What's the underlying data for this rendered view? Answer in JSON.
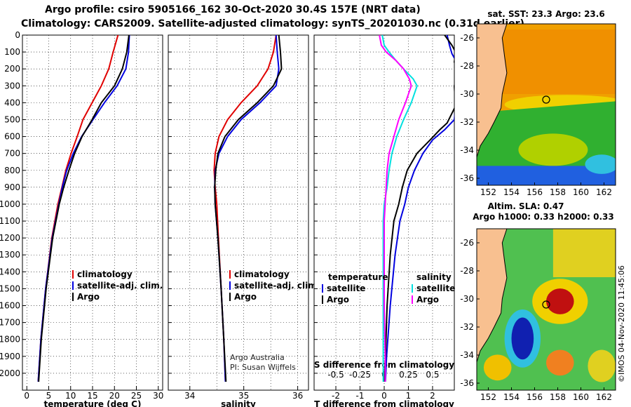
{
  "title": {
    "line1": "Argo profile: csiro 5905166_162 30-Oct-2020 30.4S 157E (NRT data)",
    "line2": "Climatology: CARS2009. Satellite-adjusted climatology: synTS_20201030.nc (0.31d earlier)"
  },
  "depth_ticks": [
    "0",
    "100",
    "200",
    "300",
    "400",
    "500",
    "600",
    "700",
    "800",
    "900",
    "1000",
    "1100",
    "1200",
    "1300",
    "1400",
    "1500",
    "1600",
    "1700",
    "1800",
    "1900",
    "2000"
  ],
  "colors": {
    "climatology": "#e00000",
    "satellite": "#0000e0",
    "argo": "#000000",
    "argo_salinity": "#ff00ff",
    "satellite_salinity": "#00e0e0"
  },
  "chart_data": [
    {
      "type": "line",
      "name": "temperature",
      "xlabel": "temperature (deg C)",
      "ylabel": "depth",
      "xlim": [
        -1,
        31
      ],
      "ylim": [
        2100,
        0
      ],
      "xticks": [
        "0",
        "5",
        "10",
        "15",
        "20",
        "25",
        "30"
      ],
      "xtick_values": [
        0,
        5,
        10,
        15,
        20,
        25,
        30
      ],
      "legend": {
        "position": "lower-right",
        "entries": [
          "climatology",
          "satellite-adj. clim.",
          "Argo"
        ]
      },
      "series": [
        {
          "name": "climatology",
          "color": "#e00000",
          "depth": [
            0,
            100,
            200,
            300,
            400,
            500,
            600,
            700,
            800,
            900,
            1000,
            1200,
            1500,
            1800,
            2050
          ],
          "values": [
            20.8,
            19.7,
            18.7,
            17.0,
            14.9,
            12.8,
            11.5,
            10.1,
            8.9,
            8.0,
            7.1,
            5.7,
            4.3,
            3.2,
            2.6
          ]
        },
        {
          "name": "satellite-adj. clim.",
          "color": "#0000e0",
          "depth": [
            0,
            100,
            200,
            300,
            400,
            500,
            600,
            700,
            800,
            900,
            1000,
            1200,
            1500,
            1800,
            2050
          ],
          "values": [
            23.4,
            23.2,
            22.6,
            20.6,
            17.7,
            15.1,
            12.5,
            10.6,
            9.1,
            8.1,
            7.3,
            5.8,
            4.3,
            3.2,
            2.6
          ]
        },
        {
          "name": "Argo",
          "color": "#000000",
          "depth": [
            0,
            100,
            200,
            300,
            400,
            500,
            600,
            700,
            800,
            900,
            1000,
            1200,
            1500,
            1800,
            2050
          ],
          "values": [
            23.3,
            22.8,
            21.8,
            20.0,
            17.0,
            14.9,
            12.6,
            10.9,
            9.6,
            8.4,
            7.4,
            5.9,
            4.4,
            3.3,
            2.7
          ]
        }
      ]
    },
    {
      "type": "line",
      "name": "salinity",
      "xlabel": "salinity",
      "ylabel": "depth",
      "xlim": [
        33.6,
        36.2
      ],
      "ylim": [
        2100,
        0
      ],
      "xticks": [
        "34",
        "35",
        "36"
      ],
      "xtick_values": [
        34,
        35,
        36
      ],
      "minor_xtick_values": [
        34.5,
        35.5
      ],
      "legend": {
        "position": "lower-right",
        "entries": [
          "climatology",
          "satellite-adj. clim.",
          "Argo"
        ]
      },
      "annotation": [
        "Argo Australia",
        "PI: Susan Wijffels"
      ],
      "series": [
        {
          "name": "climatology",
          "color": "#e00000",
          "depth": [
            0,
            100,
            200,
            300,
            400,
            500,
            600,
            700,
            800,
            900,
            1000,
            1200,
            1500,
            1800,
            2050
          ],
          "values": [
            35.6,
            35.55,
            35.45,
            35.25,
            34.95,
            34.7,
            34.54,
            34.47,
            34.45,
            34.47,
            34.5,
            34.53,
            34.58,
            34.63,
            34.66
          ]
        },
        {
          "name": "satellite-adj. clim.",
          "color": "#0000e0",
          "depth": [
            0,
            100,
            200,
            300,
            400,
            500,
            600,
            700,
            800,
            900,
            1000,
            1200,
            1500,
            1800,
            2050
          ],
          "values": [
            35.6,
            35.62,
            35.65,
            35.6,
            35.3,
            34.95,
            34.7,
            34.54,
            34.47,
            34.46,
            34.47,
            34.52,
            34.58,
            34.63,
            34.66
          ]
        },
        {
          "name": "Argo",
          "color": "#000000",
          "depth": [
            0,
            100,
            200,
            300,
            400,
            500,
            600,
            700,
            800,
            900,
            1000,
            1200,
            1500,
            1800,
            2050
          ],
          "values": [
            35.65,
            35.68,
            35.7,
            35.55,
            35.25,
            34.9,
            34.65,
            34.52,
            34.48,
            34.46,
            34.47,
            34.52,
            34.58,
            34.63,
            34.67
          ]
        }
      ]
    },
    {
      "type": "line",
      "name": "difference",
      "xlabel": "T difference from climatology",
      "x2label": "S difference from climatology",
      "ylabel": "depth",
      "xlim": [
        -2.9,
        2.9
      ],
      "ylim": [
        2100,
        0
      ],
      "xticks": [
        "-2",
        "-1",
        "0",
        "1",
        "2"
      ],
      "xtick_values": [
        -2,
        -1,
        0,
        1,
        2
      ],
      "x2lim": [
        -0.725,
        0.725
      ],
      "x2ticks": [
        "-0.5",
        "-0.25",
        "0",
        "0.25",
        "0.5"
      ],
      "x2tick_values": [
        -0.5,
        -0.25,
        0,
        0.25,
        0.5
      ],
      "legend": {
        "position": "lower-center",
        "temperature_header": "temperature",
        "salinity_header": "salinity",
        "temperature_entries": [
          "satellite",
          "Argo"
        ],
        "salinity_entries": [
          "satellite",
          "Argo"
        ]
      },
      "series": [
        {
          "name": "temperature satellite",
          "axis": "T",
          "color": "#0000e0",
          "depth": [
            0,
            60,
            110,
            160,
            200,
            500,
            560,
            620,
            700,
            800,
            900,
            1000,
            1100,
            1300,
            1600,
            1900,
            2050
          ],
          "values": [
            2.6,
            2.7,
            2.8,
            3.0,
            3.1,
            2.9,
            2.5,
            2.0,
            1.6,
            1.25,
            1.0,
            0.85,
            0.65,
            0.45,
            0.25,
            0.1,
            0.05
          ]
        },
        {
          "name": "temperature Argo",
          "axis": "T",
          "color": "#000000",
          "depth": [
            0,
            60,
            100,
            160,
            200,
            300,
            420,
            520,
            560,
            620,
            700,
            800,
            900,
            1000,
            1100,
            1300,
            1600,
            1900,
            2050
          ],
          "values": [
            2.5,
            2.8,
            2.95,
            2.9,
            3.1,
            2.9,
            2.95,
            2.6,
            2.3,
            1.9,
            1.35,
            0.95,
            0.75,
            0.6,
            0.4,
            0.25,
            0.12,
            0.05,
            0.0
          ]
        },
        {
          "name": "salinity satellite",
          "axis": "S",
          "color": "#00e0e0",
          "depth": [
            0,
            60,
            100,
            150,
            200,
            260,
            300,
            400,
            500,
            600,
            700,
            800,
            900,
            1000,
            1100,
            1300,
            1600,
            1900,
            2050
          ],
          "values": [
            -0.02,
            0.0,
            0.05,
            0.12,
            0.2,
            0.3,
            0.34,
            0.28,
            0.2,
            0.13,
            0.08,
            0.05,
            0.03,
            0.0,
            -0.01,
            -0.01,
            -0.01,
            -0.01,
            -0.01
          ]
        },
        {
          "name": "salinity Argo",
          "axis": "S",
          "color": "#ff00ff",
          "depth": [
            0,
            60,
            100,
            150,
            200,
            260,
            300,
            400,
            500,
            600,
            700,
            800,
            900,
            1000,
            1100,
            1300,
            1600,
            1900,
            2050
          ],
          "values": [
            -0.05,
            -0.03,
            0.02,
            0.12,
            0.2,
            0.26,
            0.28,
            0.22,
            0.15,
            0.1,
            0.05,
            0.03,
            0.02,
            0.01,
            0.0,
            0.0,
            0.0,
            0.01,
            0.01
          ]
        }
      ]
    },
    {
      "type": "heatmap",
      "name": "sst-map",
      "title": "sat. SST: 23.3 Argo: 23.6",
      "xlim": [
        151,
        163
      ],
      "ylim": [
        -36.5,
        -25
      ],
      "xticks": [
        "152",
        "154",
        "156",
        "158",
        "160",
        "162"
      ],
      "xtick_values": [
        152,
        154,
        156,
        158,
        160,
        162
      ],
      "yticks": [
        "-26",
        "-28",
        "-30",
        "-32",
        "-34",
        "-36"
      ],
      "ytick_values": [
        -26,
        -28,
        -30,
        -32,
        -34,
        -36
      ],
      "argo_position": [
        157.0,
        -30.4
      ]
    },
    {
      "type": "heatmap",
      "name": "sla-map",
      "title_line1": "Altim. SLA: 0.47",
      "title_line2": "Argo h1000: 0.33 h2000: 0.33",
      "xlim": [
        151,
        163
      ],
      "ylim": [
        -36.5,
        -25
      ],
      "xticks": [
        "152",
        "154",
        "156",
        "158",
        "160",
        "162"
      ],
      "xtick_values": [
        152,
        154,
        156,
        158,
        160,
        162
      ],
      "yticks": [
        "-26",
        "-28",
        "-30",
        "-32",
        "-34",
        "-36"
      ],
      "ytick_values": [
        -26,
        -28,
        -30,
        -32,
        -34,
        -36
      ],
      "argo_position": [
        157.0,
        -30.4
      ]
    }
  ],
  "footer_stamp": "©IMOS 04-Nov-2020 11:45:06"
}
